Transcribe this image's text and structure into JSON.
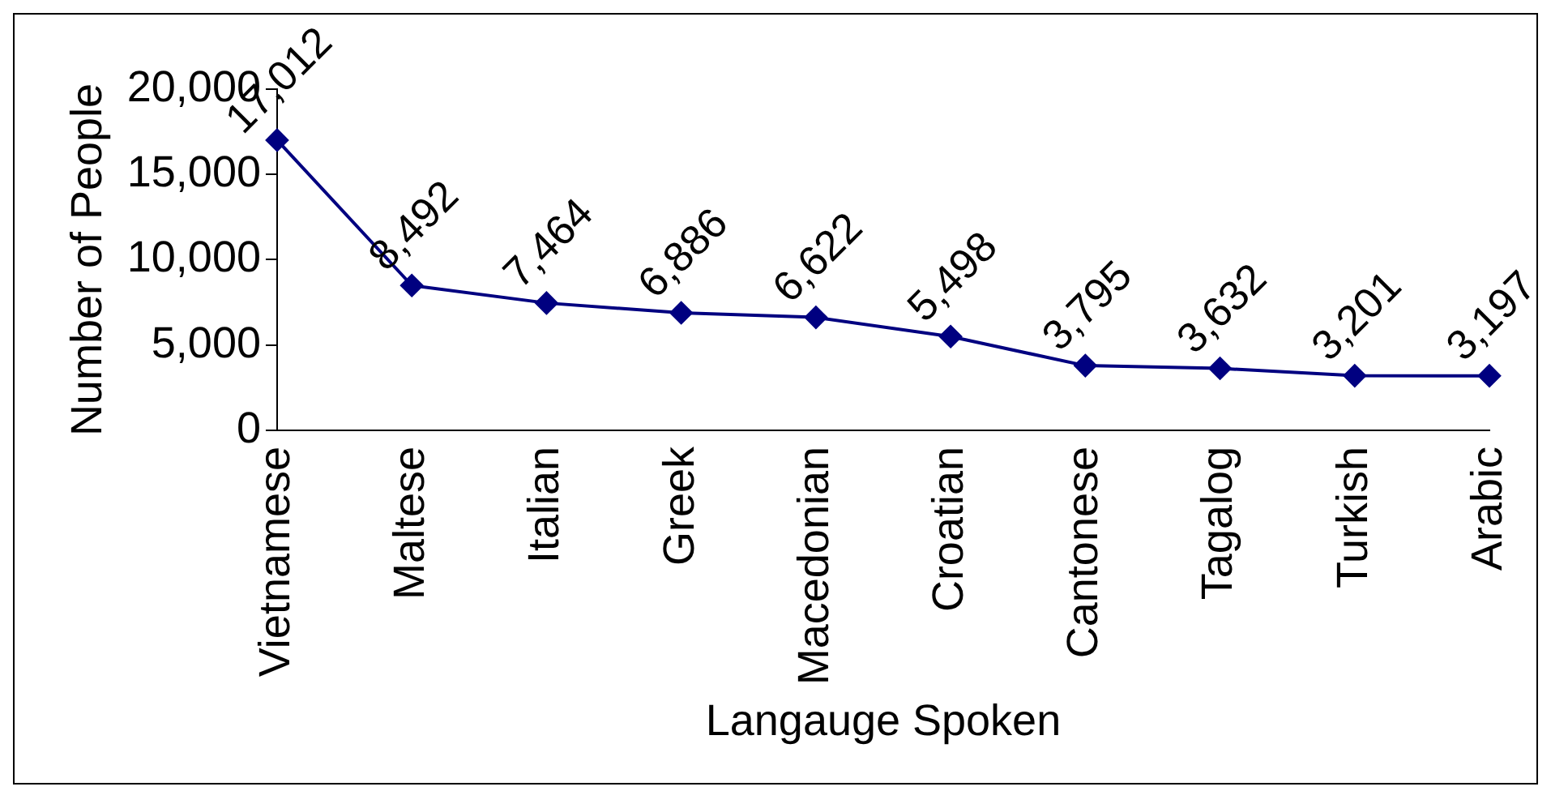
{
  "chart_data": {
    "type": "line",
    "xlabel": "Langauge Spoken",
    "ylabel": "Number of People",
    "categories": [
      "Vietnamese",
      "Maltese",
      "Italian",
      "Greek",
      "Macedonian",
      "Croatian",
      "Cantonese",
      "Tagalog",
      "Turkish",
      "Arabic"
    ],
    "series": [
      {
        "color": "#000080",
        "values": [
          17012,
          8492,
          7464,
          6886,
          6622,
          5498,
          3795,
          3632,
          3201,
          3197
        ]
      }
    ],
    "ylim": [
      0,
      20000
    ],
    "yticks": [
      {
        "value": 0,
        "label": "0"
      },
      {
        "value": 5000,
        "label": "5,000"
      },
      {
        "value": 10000,
        "label": "10,000"
      },
      {
        "value": 15000,
        "label": "15,000"
      },
      {
        "value": 20000,
        "label": "20,000"
      }
    ],
    "grid": false,
    "legend": false,
    "marker": "diamond",
    "line_style": "solid",
    "value_labels": [
      "17,012",
      "8,492",
      "7,464",
      "6,886",
      "6,622",
      "5,498",
      "3,795",
      "3,632",
      "3,201",
      "3,197"
    ]
  }
}
